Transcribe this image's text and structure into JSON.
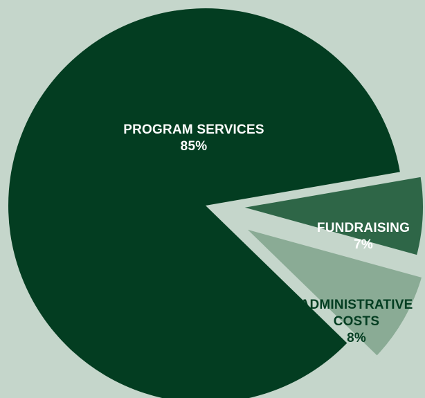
{
  "chart_data": {
    "type": "pie",
    "colors": {
      "background": "#c5d6cb",
      "separator": "#c5d6cb"
    },
    "slices": [
      {
        "label": "PROGRAM SERVICES",
        "value": 85,
        "value_label": "85%",
        "color": "#033d21",
        "text_color": "#ffffff",
        "exploded": false
      },
      {
        "label": "FUNDRAISING",
        "value": 7,
        "value_label": "7%",
        "color": "#2e6647",
        "text_color": "#ffffff",
        "exploded": true
      },
      {
        "label": "ADMINISTRATIVE COSTS",
        "label_lines": [
          "ADMINISTRATIVE",
          "COSTS"
        ],
        "value": 8,
        "value_label": "8%",
        "color": "#8aab95",
        "text_color": "#033d21",
        "exploded": true
      }
    ]
  }
}
